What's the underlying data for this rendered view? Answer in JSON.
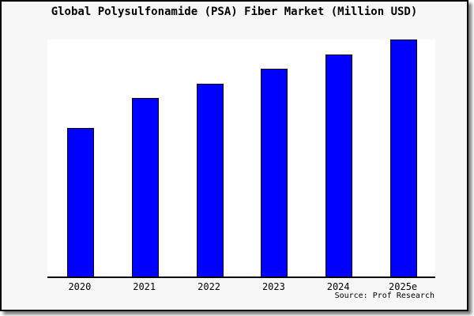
{
  "panel": {
    "background": "#f7f7f7",
    "plot_background": "#ffffff",
    "border_color": "#000000"
  },
  "chart_data": {
    "type": "bar",
    "title": "Global Polysulfonamide (PSA) Fiber Market (Million USD)",
    "categories": [
      "2020",
      "2021",
      "2022",
      "2023",
      "2024",
      "2025e"
    ],
    "values": [
      62.8,
      75.3,
      81.5,
      87.7,
      93.8,
      100
    ],
    "value_note": "y-axis has no tick labels; values are relative bar heights with 2025e = 100",
    "xlabel": "",
    "ylabel": "",
    "ylim": [
      0,
      100
    ],
    "grid": false,
    "legend": null,
    "bar_color": "#0000ff",
    "bar_edge_color": "#000000",
    "axis_line_color": "#000000"
  },
  "source": {
    "label": "Source: Prof Research"
  }
}
